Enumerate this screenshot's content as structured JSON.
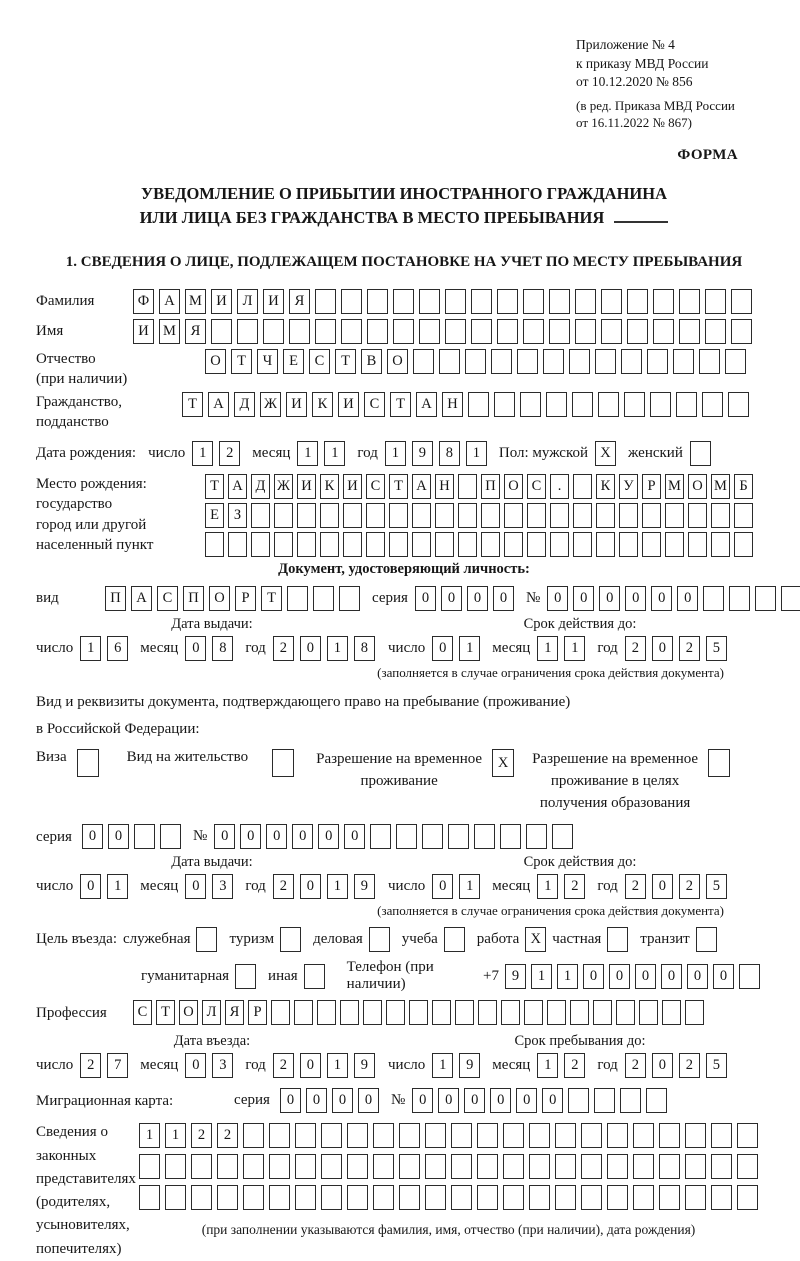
{
  "header": {
    "appendix_lines": [
      "Приложение № 4",
      "к приказу МВД России",
      "от 10.12.2020 № 856"
    ],
    "revision_lines": [
      "(в ред. Приказа МВД России",
      "от 16.11.2022 № 867)"
    ],
    "forma_label": "ФОРМА"
  },
  "title": {
    "line1": "УВЕДОМЛЕНИЕ О ПРИБЫТИИ ИНОСТРАННОГО ГРАЖДАНИНА",
    "line2": "ИЛИ ЛИЦА БЕЗ ГРАЖДАНСТВА В МЕСТО ПРЕБЫВАНИЯ"
  },
  "section1_heading": "1. СВЕДЕНИЯ О ЛИЦЕ, ПОДЛЕЖАЩЕМ ПОСТАНОВКЕ НА УЧЕТ ПО МЕСТУ ПРЕБЫВАНИЯ",
  "labels": {
    "day": "число",
    "month": "месяц",
    "year": "год",
    "series": "серия",
    "number": "№",
    "issue_date": "Дата выдачи:",
    "valid_until": "Срок действия до:",
    "restriction_note": "(заполняется в случае ограничения срока действия документа)"
  },
  "surname": {
    "label": "Фамилия",
    "cells": {
      "t": "ФАМИЛИЯ",
      "n": 24
    }
  },
  "given_name": {
    "label": "Имя",
    "cells": {
      "t": "ИМЯ",
      "n": 24
    }
  },
  "patronymic": {
    "label1": "Отчество",
    "label2": "(при наличии)",
    "cells": {
      "t": "ОТЧЕСТВО",
      "n": 21
    }
  },
  "citizenship": {
    "label1": "Гражданство,",
    "label2": "подданство",
    "cells": {
      "t": "ТАДЖИКИСТАН",
      "n": 22
    }
  },
  "birth_date": {
    "label": "Дата рождения:",
    "day": {
      "t": "12",
      "n": 2
    },
    "month": {
      "t": "11",
      "n": 2
    },
    "year": {
      "t": "1981",
      "n": 4
    },
    "sex_label": "Пол: мужской",
    "male": {
      "t": "X",
      "n": 1
    },
    "female_label": "женский",
    "female": {
      "t": "",
      "n": 1
    }
  },
  "birth_place": {
    "label_lines": [
      "Место рождения:",
      "государство",
      "город или другой",
      "населенный пункт"
    ],
    "row1": {
      "t": "ТАДЖИКИСТАН ПОС. КУРМОМБ",
      "n": 24
    },
    "row2": {
      "t": "ЕЗ",
      "n": 24
    },
    "row3": {
      "t": "",
      "n": 24
    }
  },
  "identity_doc": {
    "heading": "Документ, удостоверяющий личность:",
    "kind_label": "вид",
    "kind": {
      "t": "ПАСПОРТ",
      "n": 10
    },
    "series": {
      "t": "0000",
      "n": 4
    },
    "number": {
      "t": "000000",
      "n": 11
    },
    "issue": {
      "day": {
        "t": "16",
        "n": 2
      },
      "month": {
        "t": "08",
        "n": 2
      },
      "year": {
        "t": "2018",
        "n": 4
      }
    },
    "expiry": {
      "day": {
        "t": "01",
        "n": 2
      },
      "month": {
        "t": "11",
        "n": 2
      },
      "year": {
        "t": "2025",
        "n": 4
      }
    }
  },
  "residence_doc": {
    "intro1": "Вид и реквизиты документа, подтверждающего право на пребывание (проживание)",
    "intro2": "в Российской Федерации:",
    "visa_label": "Виза",
    "visa": {
      "t": "",
      "n": 1
    },
    "residence_permit_label": "Вид на жительство",
    "residence_permit": {
      "t": "",
      "n": 1
    },
    "temp_permit_label1": "Разрешение на временное",
    "temp_permit_label2": "проживание",
    "temp_permit": {
      "t": "X",
      "n": 1
    },
    "edu_permit_label1": "Разрешение на временное",
    "edu_permit_label2": "проживание в целях",
    "edu_permit_label3": "получения образования",
    "edu_permit": {
      "t": "",
      "n": 1
    },
    "series": {
      "t": "00",
      "n": 4
    },
    "number": {
      "t": "000000",
      "n": 14
    },
    "issue": {
      "day": {
        "t": "01",
        "n": 2
      },
      "month": {
        "t": "03",
        "n": 2
      },
      "year": {
        "t": "2019",
        "n": 4
      }
    },
    "expiry": {
      "day": {
        "t": "01",
        "n": 2
      },
      "month": {
        "t": "12",
        "n": 2
      },
      "year": {
        "t": "2025",
        "n": 4
      }
    }
  },
  "visit_purpose": {
    "label": "Цель въезда:",
    "official_label": "служебная",
    "official": {
      "t": "",
      "n": 1
    },
    "tourism_label": "туризм",
    "tourism": {
      "t": "",
      "n": 1
    },
    "business_label": "деловая",
    "business": {
      "t": "",
      "n": 1
    },
    "study_label": "учеба",
    "study": {
      "t": "",
      "n": 1
    },
    "work_label": "работа",
    "work": {
      "t": "X",
      "n": 1
    },
    "private_label": "частная",
    "private": {
      "t": "",
      "n": 1
    },
    "transit_label": "транзит",
    "transit": {
      "t": "",
      "n": 1
    },
    "humanitarian_label": "гуманитарная",
    "humanitarian": {
      "t": "",
      "n": 1
    },
    "other_label": "иная",
    "other": {
      "t": "",
      "n": 1
    },
    "phone_label": "Телефон (при наличии)",
    "phone_prefix": "+7",
    "phone": {
      "t": "911000000",
      "n": 10
    }
  },
  "profession": {
    "label": "Профессия",
    "cells": {
      "t": "СТОЛЯР",
      "n": 25
    }
  },
  "entry": {
    "date_heading": "Дата въезда:",
    "date": {
      "day": {
        "t": "27",
        "n": 2
      },
      "month": {
        "t": "03",
        "n": 2
      },
      "year": {
        "t": "2019",
        "n": 4
      }
    },
    "stay_heading": "Срок пребывания до:",
    "stay": {
      "day": {
        "t": "19",
        "n": 2
      },
      "month": {
        "t": "12",
        "n": 2
      },
      "year": {
        "t": "2025",
        "n": 4
      }
    }
  },
  "migration_card": {
    "label": "Миграционная карта:",
    "series": {
      "t": "0000",
      "n": 4
    },
    "number": {
      "t": "000000",
      "n": 10
    }
  },
  "representatives": {
    "label_lines": [
      "Сведения о",
      "законных",
      "представителях",
      "(родителях,",
      "усыновителях,",
      "попечителях)"
    ],
    "row1": {
      "t": "1122",
      "n": 24
    },
    "row2": {
      "t": "",
      "n": 24
    },
    "row3": {
      "t": "",
      "n": 24
    },
    "note": "(при заполнении указываются фамилия, имя, отчество (при наличии), дата рождения)"
  }
}
